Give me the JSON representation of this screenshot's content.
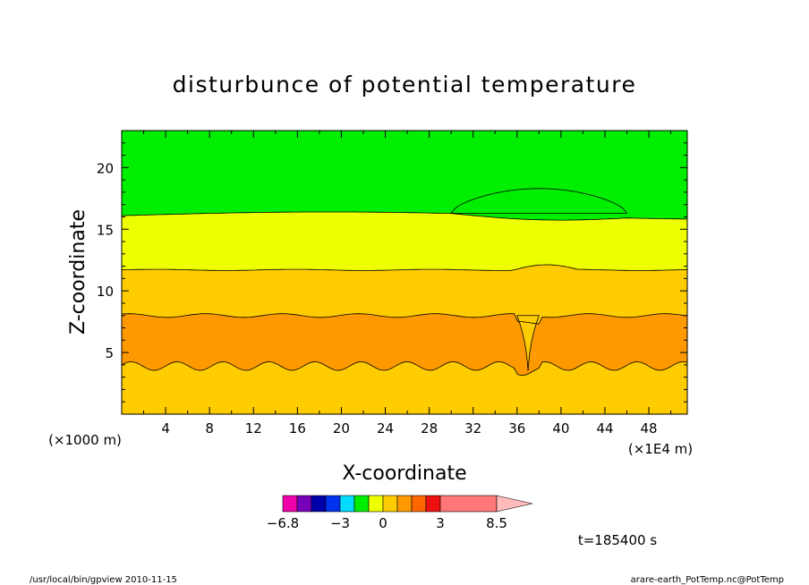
{
  "chart_data": {
    "type": "heatmap",
    "title": "disturbunce of potential temperature",
    "xlabel": "X-coordinate",
    "ylabel": "Z-coordinate",
    "x_unit_left": "(×1000 m)",
    "x_unit_right": "(×1E4 m)",
    "xlim": [
      0,
      51.5
    ],
    "ylim": [
      0,
      23
    ],
    "xticks": [
      "4",
      "8",
      "12",
      "16",
      "20",
      "24",
      "28",
      "32",
      "36",
      "40",
      "44",
      "48"
    ],
    "yticks": [
      "5",
      "10",
      "15",
      "20"
    ],
    "layers": [
      {
        "color": "#ffcc00",
        "z_bottom": 0,
        "z_top": 3.9
      },
      {
        "color": "#ff9900",
        "z_bottom": 3.9,
        "z_top": 8.0
      },
      {
        "color": "#ffcc00",
        "z_bottom": 8.0,
        "z_top": 11.7
      },
      {
        "color": "#eeff00",
        "z_bottom": 11.7,
        "z_top": 16.1
      },
      {
        "color": "#00ee00",
        "z_bottom": 16.1,
        "z_top": 23
      }
    ],
    "features": {
      "plume_x": 37,
      "green_cap_top_z": 18.3,
      "green_cap_x_range": [
        30,
        46
      ],
      "orange_bump_top_z": 12.1
    },
    "colorbar": {
      "colors": [
        "#ee00aa",
        "#7700bb",
        "#0000aa",
        "#0033ee",
        "#00ddff",
        "#00ee00",
        "#eeff00",
        "#ffcc00",
        "#ff9900",
        "#ff6600",
        "#ee1111",
        "#ff7777",
        "#ffbbbb"
      ],
      "tick_labels": [
        "−6.8",
        "−3",
        "0",
        "3",
        "8.5"
      ]
    },
    "time_label": "t=185400 s"
  },
  "footer": {
    "left": "/usr/local/bin/gpview   2010-11-15",
    "right": "arare-earth_PotTemp.nc@PotTemp"
  }
}
